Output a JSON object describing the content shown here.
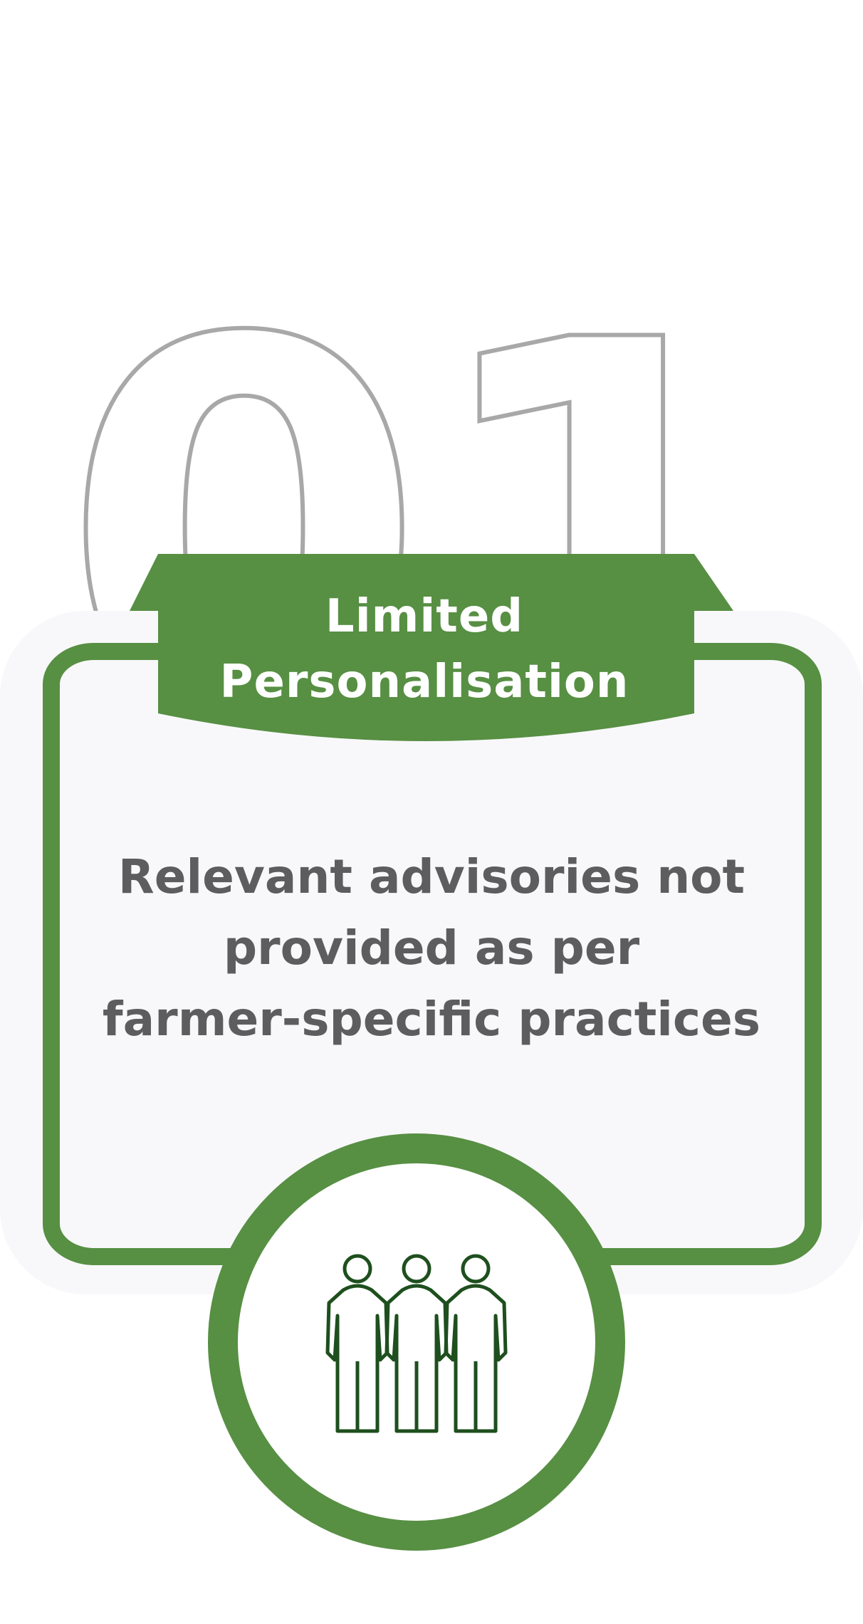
{
  "big_number": "01",
  "card": {
    "title_line1": "Limited",
    "title_line2": "Personalisation",
    "description_lines": [
      "Relevant advisories not",
      "provided as per",
      "farmer-specific practices"
    ]
  },
  "icon": "group-of-people-icon",
  "colors": {
    "accent_green": "#578f43",
    "card_background": "#f8f8fa",
    "number_outline": "#a8a8a8",
    "text_gray": "#5d5d5f",
    "icon_dark_green": "#1e4f1e"
  }
}
